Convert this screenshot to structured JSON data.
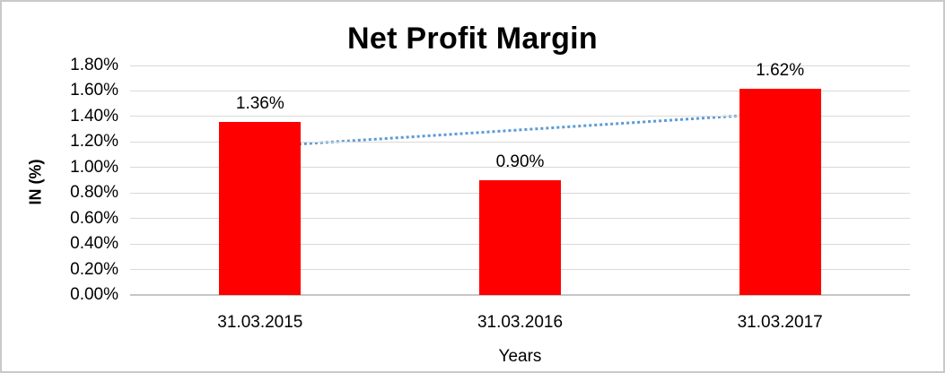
{
  "chart_data": {
    "type": "bar",
    "title": "Net Profit Margin",
    "xlabel": "Years",
    "ylabel": "IN (%)",
    "categories": [
      "31.03.2015",
      "31.03.2016",
      "31.03.2017"
    ],
    "values": [
      1.36,
      0.9,
      1.62
    ],
    "data_labels": [
      "1.36%",
      "0.90%",
      "1.62%"
    ],
    "ylim": [
      0,
      1.8
    ],
    "ytick_step": 0.2,
    "ytick_labels": [
      "0.00%",
      "0.20%",
      "0.40%",
      "0.60%",
      "0.80%",
      "1.00%",
      "1.20%",
      "1.40%",
      "1.60%",
      "1.80%"
    ],
    "grid": true,
    "legend": "none",
    "bar_color": "#ff0000",
    "gridline_color": "#d9d9d9",
    "text_color": "#000000",
    "trendline": {
      "type": "linear",
      "line_style": "dotted",
      "color": "#5b9bd5",
      "start_value": 1.163,
      "end_value": 1.423
    }
  }
}
